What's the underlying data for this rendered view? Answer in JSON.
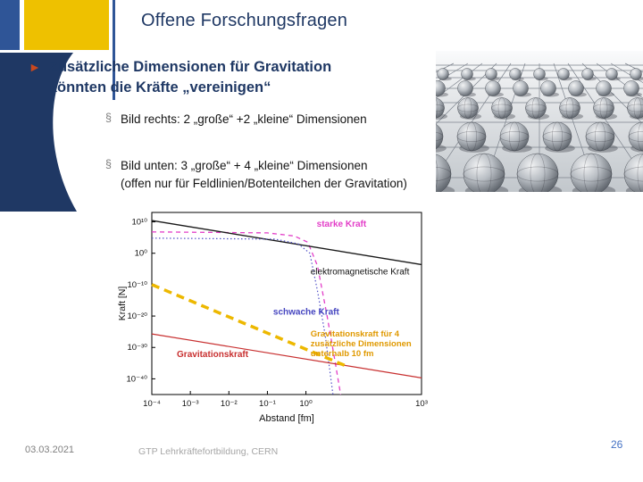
{
  "theme": {
    "navy": "#1f3864",
    "gold": "#eec100",
    "blue": "#2f5597",
    "arrow": "#c9481e",
    "pagenum": "#4472c4"
  },
  "slide": {
    "title": "Offene Forschungsfragen",
    "bullet": {
      "marker": "►",
      "line1": "Zusätzliche Dimensionen für Gravitation",
      "line2": "könnten die Kräfte „vereinigen“"
    },
    "subbullets": [
      {
        "marker": "§",
        "text": "Bild rechts: 2 „große“ +2 „kleine“ Dimensionen"
      },
      {
        "marker": "§",
        "text": "Bild unten: 3 „große“ + 4 „kleine“ Dimensionen",
        "text2": "(offen nur für Feldlinien/Botenteilchen der Gravitation)"
      }
    ],
    "footer": {
      "date": "03.03.2021",
      "center": "GTP Lehrkräftefortbildung, CERN",
      "page": "26"
    }
  },
  "chart_data": {
    "type": "line",
    "title": "",
    "xlabel": "Abstand [fm]",
    "ylabel": "Kraft [N]",
    "x_scale": "log",
    "y_scale": "log",
    "x_log_range": [
      -4,
      3
    ],
    "y_log_range": [
      -45,
      13
    ],
    "x_ticks": [
      {
        "log": -4,
        "label": "10⁻⁴"
      },
      {
        "log": -3,
        "label": "10⁻³"
      },
      {
        "log": -2,
        "label": "10⁻²"
      },
      {
        "log": -1,
        "label": "10⁻¹"
      },
      {
        "log": 0,
        "label": "10⁰"
      },
      {
        "log": 3,
        "label": "10³"
      }
    ],
    "y_ticks": [
      {
        "log": 10,
        "label": "10¹⁰"
      },
      {
        "log": 0,
        "label": "10⁰"
      },
      {
        "log": -10,
        "label": "10⁻¹⁰"
      },
      {
        "log": -20,
        "label": "10⁻²⁰"
      },
      {
        "log": -30,
        "label": "10⁻³⁰"
      },
      {
        "log": -40,
        "label": "10⁻⁴⁰"
      }
    ],
    "series": [
      {
        "name": "starke Kraft",
        "color": "#e33ec8",
        "dash": "5 4",
        "width": 1.3,
        "points": [
          [
            -4,
            6.8
          ],
          [
            -1,
            6.5
          ],
          [
            -0.3,
            5.5
          ],
          [
            0.05,
            3.5
          ],
          [
            0.3,
            -4
          ],
          [
            0.55,
            -20
          ],
          [
            0.75,
            -34
          ],
          [
            0.9,
            -45
          ]
        ]
      },
      {
        "name": "elektromagnetische Kraft",
        "color": "#1a1a1a",
        "dash": "",
        "width": 1.4,
        "points": [
          [
            -4,
            10.4
          ],
          [
            3,
            -3.6
          ]
        ]
      },
      {
        "name": "schwache Kraft",
        "color": "#5050c8",
        "dash": "1.5 2.5",
        "width": 1.2,
        "points": [
          [
            -4,
            4.8
          ],
          [
            -0.8,
            4.5
          ],
          [
            -0.2,
            3
          ],
          [
            0.1,
            0
          ],
          [
            0.3,
            -12
          ],
          [
            0.5,
            -26
          ],
          [
            0.7,
            -45
          ]
        ]
      },
      {
        "name": "Gravitationskraft",
        "color": "#c83030",
        "dash": "",
        "width": 1.2,
        "points": [
          [
            -4,
            -25.7
          ],
          [
            3,
            -39.7
          ]
        ]
      },
      {
        "name": "Gravitationskraft für 4 zusätzliche Dimensionen",
        "color": "#edb800",
        "dash": "9 6",
        "width": 3.5,
        "points": [
          [
            -4,
            -10
          ],
          [
            1,
            -35.7
          ]
        ]
      }
    ],
    "annotations": [
      {
        "text": [
          "starke Kraft"
        ],
        "color": "#e33ec8",
        "x": 0.28,
        "y": 8.4,
        "bold": true,
        "size": 10
      },
      {
        "text": [
          "elektromagnetische Kraft"
        ],
        "color": "#111111",
        "x": 0.12,
        "y": -6.8,
        "bold": false,
        "size": 10
      },
      {
        "text": [
          "schwache Kraft"
        ],
        "color": "#4646c0",
        "x": -0.85,
        "y": -19.5,
        "bold": true,
        "size": 10
      },
      {
        "text": [
          "Gravitationskraft"
        ],
        "color": "#c83030",
        "x": -3.35,
        "y": -33,
        "bold": true,
        "size": 10
      },
      {
        "text": [
          "Gravitationskraft für 4",
          "zusätzliche Dimensionen",
          "unterhalb 10 fm"
        ],
        "color": "#e09900",
        "x": 0.12,
        "y": -26.5,
        "bold": true,
        "size": 9.5
      }
    ]
  }
}
